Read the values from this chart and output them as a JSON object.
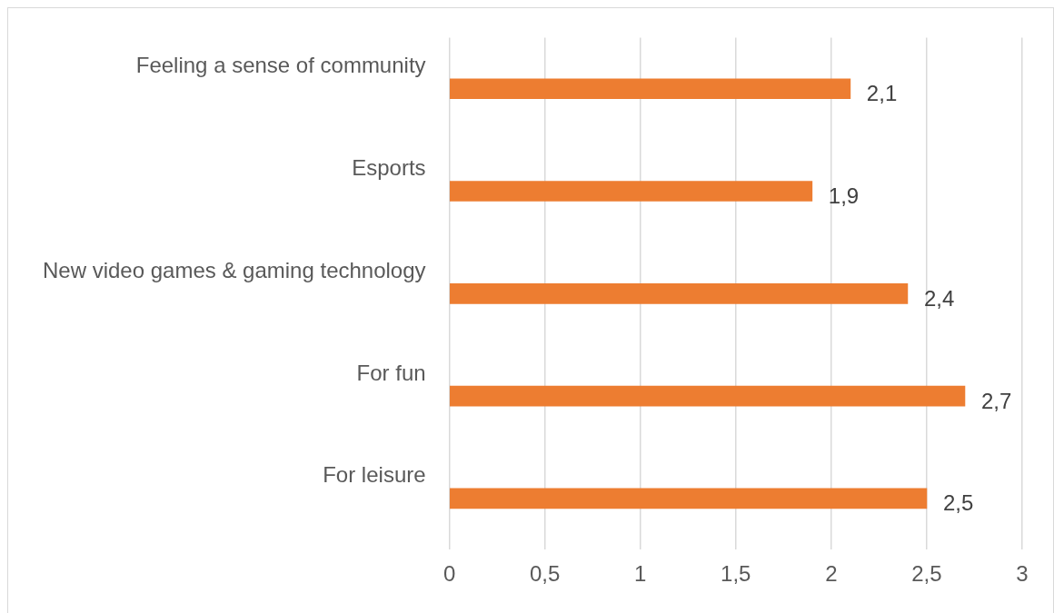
{
  "chart_data": {
    "type": "bar",
    "orientation": "horizontal",
    "categories": [
      "Feeling a sense of community",
      "Esports",
      "New video games & gaming technology",
      "For fun",
      "For leisure"
    ],
    "values": [
      2.1,
      1.9,
      2.4,
      2.7,
      2.5
    ],
    "value_labels": [
      "2,1",
      "1,9",
      "2,4",
      "2,7",
      "2,5"
    ],
    "color": "#ed7d31",
    "xlim": [
      0,
      3
    ],
    "xticks": [
      0,
      {
        "value": 0.5,
        "label": "0,5"
      },
      1,
      {
        "value": 1.5,
        "label": "1,5"
      },
      2,
      {
        "value": 2.5,
        "label": "2,5"
      },
      3
    ],
    "grid": "x",
    "legend": false
  }
}
